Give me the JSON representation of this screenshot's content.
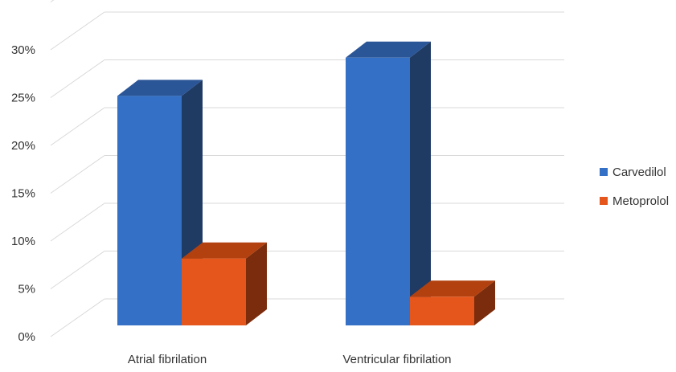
{
  "chart_data": {
    "type": "bar",
    "categories": [
      "Atrial fibrilation",
      "Ventricular fibrilation"
    ],
    "series": [
      {
        "name": "Carvedilol",
        "values": [
          24,
          28
        ]
      },
      {
        "name": "Metoprolol",
        "values": [
          7,
          3
        ]
      }
    ],
    "y_ticks": [
      "0%",
      "5%",
      "10%",
      "15%",
      "20%",
      "25%",
      "30%"
    ],
    "ylim": [
      0,
      35
    ],
    "grid": true,
    "legend": "right",
    "colors": {
      "Carvedilol": {
        "front": "#3370c6",
        "side": "#1f3a63",
        "top": "#2a5596"
      },
      "Metoprolol": {
        "front": "#e4561b",
        "side": "#7a2c0c",
        "top": "#b2410f"
      },
      "grid": "#d9d9d9"
    }
  }
}
